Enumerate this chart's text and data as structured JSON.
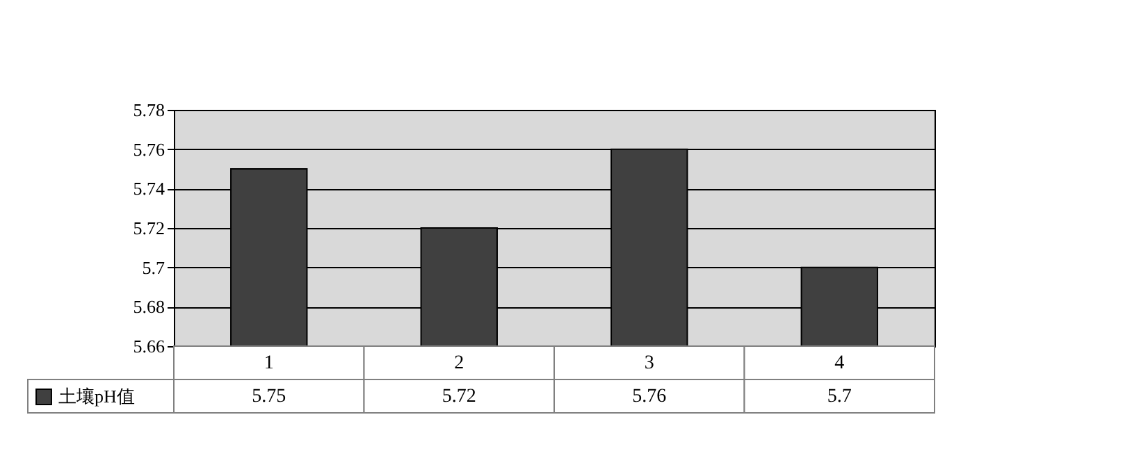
{
  "chart_data": {
    "type": "bar",
    "categories": [
      "1",
      "2",
      "3",
      "4"
    ],
    "series": [
      {
        "name": "土壤pH值",
        "color": "#404040",
        "values": [
          5.75,
          5.72,
          5.76,
          5.7
        ]
      }
    ],
    "ylim": [
      5.66,
      5.78
    ],
    "yticks": [
      5.66,
      5.68,
      5.7,
      5.72,
      5.74,
      5.76,
      5.78
    ],
    "grid": "y",
    "legend": "bottom left",
    "data_labels": true
  }
}
